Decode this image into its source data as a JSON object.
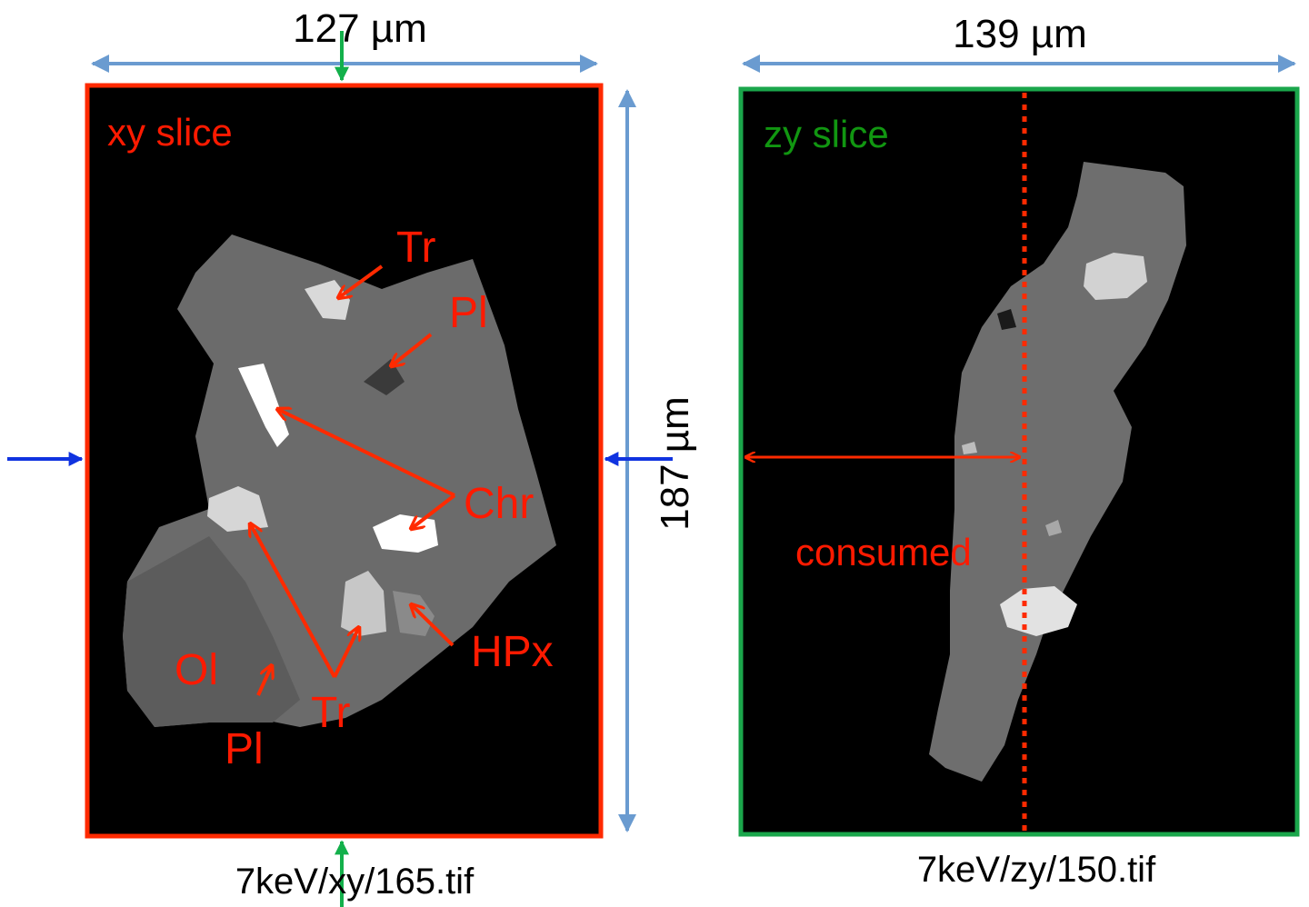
{
  "colors": {
    "xy_frame": "#ff2a00",
    "zy_frame": "#1aa64b",
    "dimension_arrow": "#6a9bd0",
    "pointer_arrow": "#ff2a00",
    "slice_marker_green": "#13b04b",
    "slice_marker_blue": "#1033e0",
    "label_red": "#ff1a00",
    "label_green": "#119611",
    "specimen_gray": "#6b6b6b"
  },
  "left_panel": {
    "title": "xy slice",
    "width_label": "127 µm",
    "height_label": "187 µm",
    "caption": "7keV/xy/165.tif",
    "phase_labels": {
      "tr_top": "Tr",
      "pl_top": "Pl",
      "chr": "Chr",
      "hpx": "HPx",
      "ol": "Ol",
      "tr_bottom": "Tr",
      "pl_bottom": "Pl"
    }
  },
  "right_panel": {
    "title": "zy slice",
    "width_label": "139 µm",
    "caption": "7keV/zy/150.tif",
    "annotation": "consumed"
  }
}
